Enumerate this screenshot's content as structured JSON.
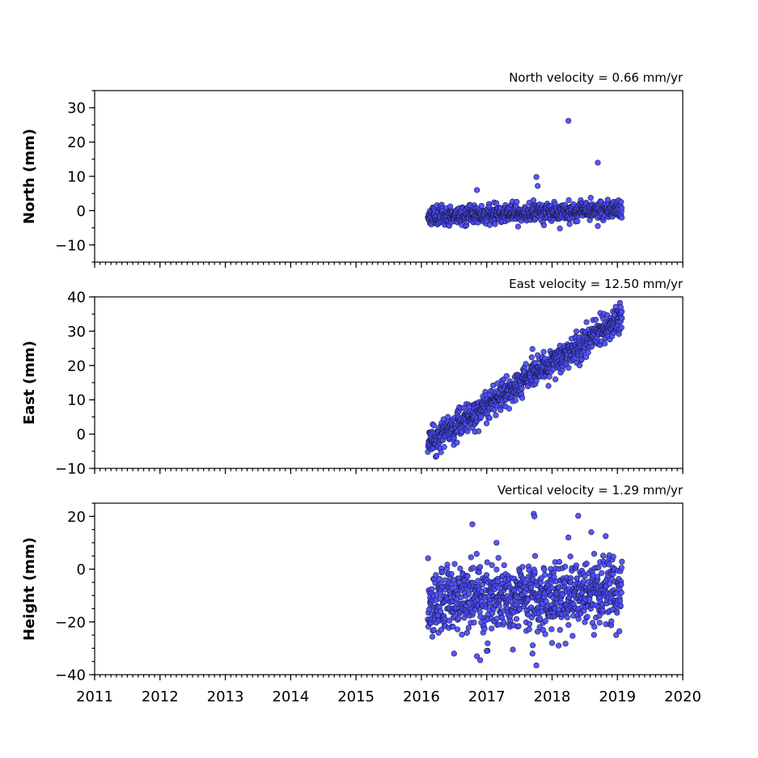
{
  "chart_data": [
    {
      "type": "scatter",
      "title": "North velocity = 0.66 mm/yr",
      "ylabel": "North (mm)",
      "xlim": [
        2011,
        2020
      ],
      "ylim": [
        -15,
        35
      ],
      "yticks": [
        -10,
        0,
        10,
        20,
        30
      ],
      "y_minor_step": 5,
      "x_minor_step": 0.083333,
      "show_xticklabels": false,
      "series": [
        {
          "sim": {
            "start": 2016.1,
            "end": 2019.07,
            "step": 0.0035,
            "slope": 0.66,
            "amp": 2.2,
            "seed": 11
          },
          "outliers": [
            [
              2018.25,
              26.2
            ],
            [
              2018.7,
              14.0
            ],
            [
              2017.76,
              9.8
            ],
            [
              2017.78,
              7.2
            ],
            [
              2016.85,
              6.0
            ],
            [
              2018.7,
              -4.5
            ],
            [
              2018.12,
              -5.2
            ]
          ]
        }
      ]
    },
    {
      "type": "scatter",
      "title": "East velocity = 12.50 mm/yr",
      "ylabel": "East (mm)",
      "xlim": [
        2011,
        2020
      ],
      "ylim": [
        -10,
        40
      ],
      "yticks": [
        -10,
        0,
        10,
        20,
        30,
        40
      ],
      "y_minor_step": 5,
      "x_minor_step": 0.083333,
      "show_xticklabels": false,
      "series": [
        {
          "sim": {
            "start": 2016.1,
            "end": 2019.07,
            "step": 0.0035,
            "slope": 12.5,
            "amp": 2.0,
            "seed": 23
          },
          "outliers": [
            [
              2017.7,
              24.8
            ],
            [
              2017.78,
              23.0
            ],
            [
              2019.05,
              37.0
            ],
            [
              2018.95,
              34.8
            ],
            [
              2016.3,
              -5.3
            ]
          ]
        }
      ]
    },
    {
      "type": "scatter",
      "title": "Vertical velocity = 1.29 mm/yr",
      "ylabel": "Height (mm)",
      "xlim": [
        2011,
        2020
      ],
      "ylim": [
        -40,
        25
      ],
      "yticks": [
        -40,
        -20,
        0,
        20
      ],
      "y_minor_step": 5,
      "x_minor_step": 0.083333,
      "show_xticklabels": true,
      "xticks": [
        2011,
        2012,
        2013,
        2014,
        2015,
        2016,
        2017,
        2018,
        2019,
        2020
      ],
      "series": [
        {
          "sim": {
            "start": 2016.1,
            "end": 2019.07,
            "step": 0.0035,
            "slope": 1.29,
            "amp": 6.5,
            "seed": 37
          },
          "outliers": [
            [
              2017.72,
              21.0
            ],
            [
              2017.73,
              20.0
            ],
            [
              2018.4,
              20.2
            ],
            [
              2016.78,
              17.0
            ],
            [
              2018.6,
              14.0
            ],
            [
              2018.82,
              12.5
            ],
            [
              2017.15,
              10.0
            ],
            [
              2018.25,
              12.0
            ],
            [
              2017.0,
              -31.0
            ],
            [
              2016.85,
              -33.0
            ],
            [
              2016.9,
              -34.5
            ],
            [
              2017.76,
              -36.5
            ],
            [
              2017.7,
              -32.0
            ],
            [
              2017.4,
              -30.5
            ],
            [
              2016.5,
              -32.0
            ],
            [
              2018.0,
              -28.0
            ],
            [
              2018.1,
              -29.0
            ]
          ]
        }
      ]
    }
  ],
  "colors": {
    "marker_fill": "#4b4bff",
    "marker_edge": "#1a1a40",
    "axis": "#000000"
  }
}
